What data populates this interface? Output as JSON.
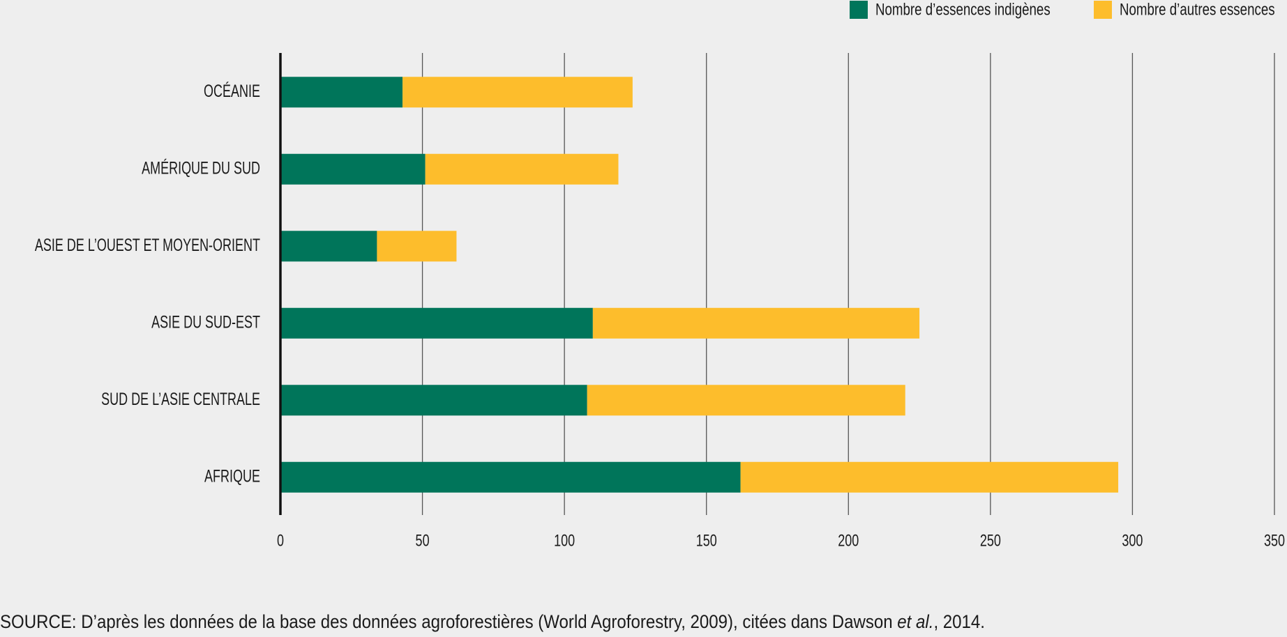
{
  "chart_data": {
    "type": "stacked-bar-horizontal",
    "categories": [
      "OCÉANIE",
      "AMÉRIQUE DU SUD",
      "ASIE DE L’OUEST ET MOYEN-ORIENT",
      "ASIE DU SUD-EST",
      "SUD DE L’ASIE CENTRALE",
      "AFRIQUE"
    ],
    "series": [
      {
        "name": "Nombre d’essences indigènes",
        "color": "#00755a",
        "values": [
          43,
          51,
          34,
          110,
          108,
          162
        ]
      },
      {
        "name": "Nombre d’autres essences",
        "color": "#fdbd2c",
        "values": [
          81,
          68,
          28,
          115,
          112,
          133
        ]
      }
    ],
    "xlim": [
      0,
      350
    ],
    "xticks": [
      0,
      50,
      100,
      150,
      200,
      250,
      300,
      350
    ],
    "grid": true,
    "legend": "top-right",
    "source": [
      "SOURCE: D’après les données de la base des données agroforestières (World Agroforestry, 2009), citées dans Dawson ",
      "et al.",
      ", 2014."
    ]
  }
}
